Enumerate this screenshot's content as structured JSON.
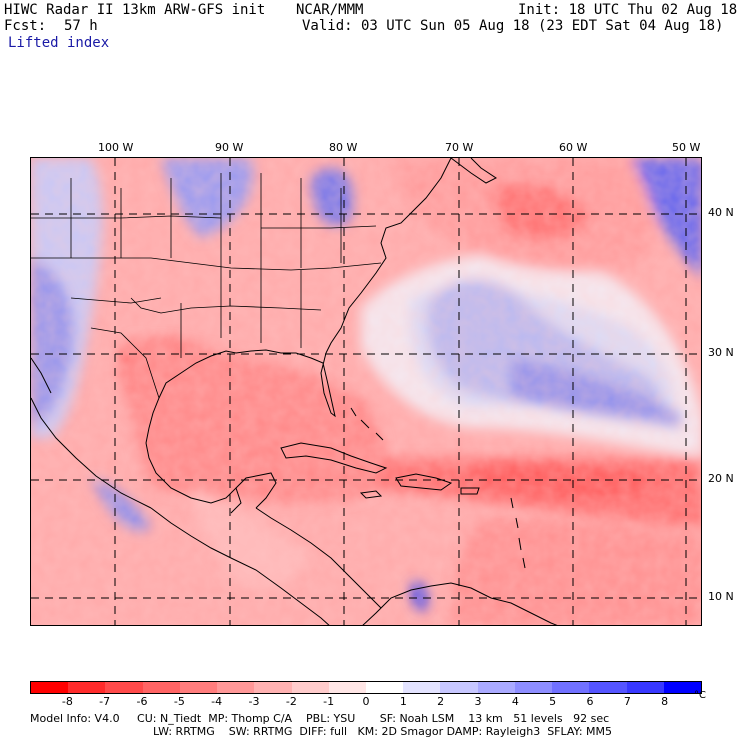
{
  "header": {
    "model": "HIWC Radar II 13km ARW-GFS init",
    "org": "NCAR/MMM",
    "init": "Init: 18 UTC Thu 02 Aug 18",
    "fcst_label": "Fcst:",
    "fcst_value": "57 h",
    "valid": "Valid: 03 UTC Sun 05 Aug 18 (23 EDT Sat 04 Aug 18)",
    "field": "Lifted index"
  },
  "map": {
    "lon_labels": [
      "100 W",
      "90 W",
      "80 W",
      "70 W",
      "60 W",
      "50 W"
    ],
    "lat_labels": [
      "40 N",
      "30 N",
      "20 N",
      "10 N"
    ]
  },
  "colorbar": {
    "ticks": [
      "-8",
      "-7",
      "-6",
      "-5",
      "-4",
      "-3",
      "-2",
      "-1",
      "0",
      "1",
      "2",
      "3",
      "4",
      "5",
      "6",
      "7",
      "8"
    ],
    "unit": "°C",
    "colors": [
      "#ff0000",
      "#ff2b2b",
      "#ff4a4a",
      "#ff6464",
      "#ff7d7d",
      "#ff9898",
      "#ffb2b2",
      "#ffcccc",
      "#ffe6e6",
      "#ffffff",
      "#e3e3ff",
      "#c7c7ff",
      "#aaaaff",
      "#8e8eff",
      "#7171ff",
      "#5555ff",
      "#3838ff",
      "#0000ff"
    ]
  },
  "footer": {
    "line1": "Model Info: V4.0     CU: N_Tiedt  MP: Thomp C/A    PBL: YSU       SF: Noah LSM    13 km   51 levels   92 sec",
    "line2": "LW: RRTMG    SW: RRTMG  DIFF: full   KM: 2D Smagor DAMP: Rayleigh3  SFLAY: MM5"
  }
}
